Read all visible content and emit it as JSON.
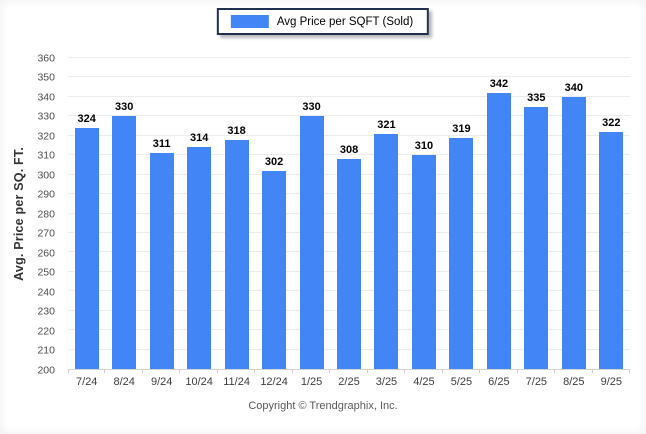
{
  "legend": {
    "label": "Avg Price per SQFT (Sold)",
    "swatch_color": "#4285F4"
  },
  "footer": {
    "copyright": "Copyright © Trendgraphix, Inc."
  },
  "chart_data": {
    "type": "bar",
    "title": "",
    "categories": [
      "7/24",
      "8/24",
      "9/24",
      "10/24",
      "11/24",
      "12/24",
      "1/25",
      "2/25",
      "3/25",
      "4/25",
      "5/25",
      "6/25",
      "7/25",
      "8/25",
      "9/25"
    ],
    "values": [
      324,
      330,
      311,
      314,
      318,
      302,
      330,
      308,
      321,
      310,
      319,
      342,
      335,
      340,
      322
    ],
    "xlabel": "",
    "ylabel": "Avg. Price per SQ. FT.",
    "ylim": [
      200,
      360
    ],
    "ytick_step": 10,
    "grid": true,
    "value_labels": true,
    "legend_position": "top-center",
    "bar_color": "#4285F4",
    "gridline_color": "#ececec"
  }
}
